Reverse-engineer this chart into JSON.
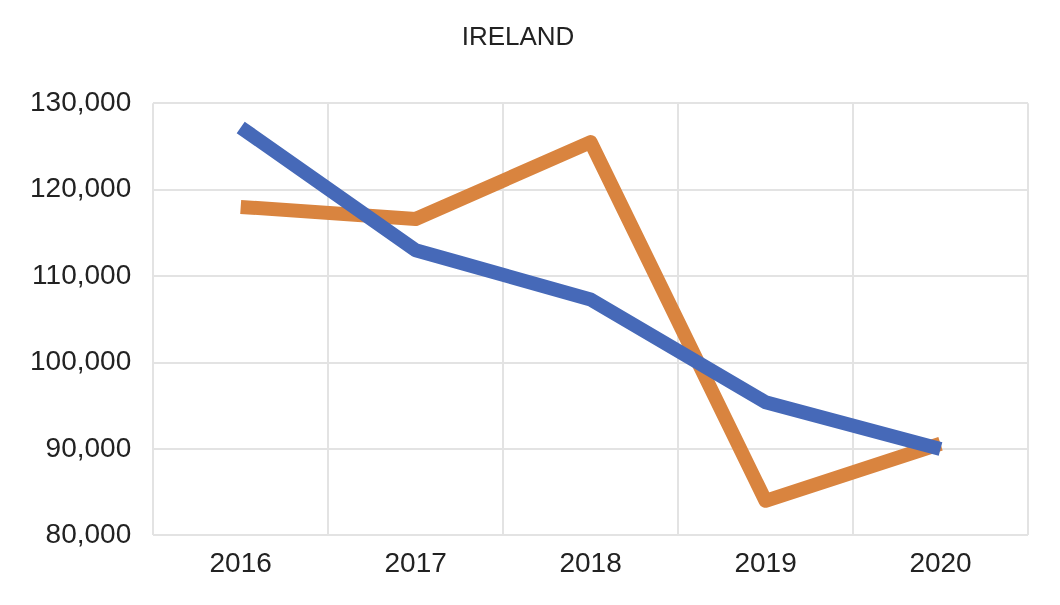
{
  "chart_data": {
    "type": "line",
    "title": "IRELAND",
    "categories": [
      "2016",
      "2017",
      "2018",
      "2019",
      "2020"
    ],
    "series": [
      {
        "color": "#4669b8",
        "values": [
          127200,
          113000,
          107300,
          95400,
          90000
        ]
      },
      {
        "color": "#d9843f",
        "values": [
          118000,
          116600,
          125500,
          84000,
          90600
        ]
      }
    ],
    "ylim": [
      80000,
      130000
    ],
    "yticks": [
      {
        "value": 80000,
        "label": "80,000"
      },
      {
        "value": 90000,
        "label": "90,000"
      },
      {
        "value": 100000,
        "label": "100,000"
      },
      {
        "value": 110000,
        "label": "110,000"
      },
      {
        "value": 120000,
        "label": "120,000"
      },
      {
        "value": 130000,
        "label": "130,000"
      }
    ],
    "grid": true,
    "legend": false,
    "marker": "none",
    "line_style": "solid"
  }
}
